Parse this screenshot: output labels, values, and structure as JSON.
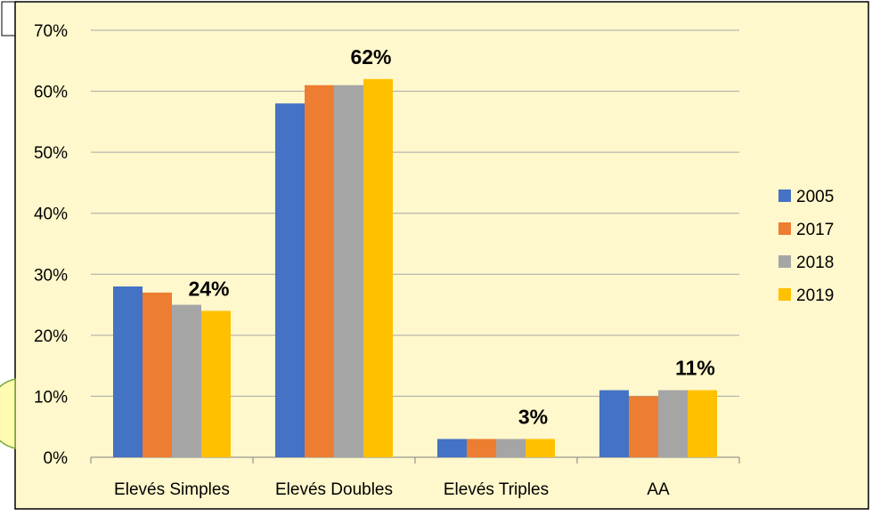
{
  "chart_data": {
    "type": "bar",
    "categories": [
      "Elevés Simples",
      "Elevés Doubles",
      "Elevés Triples",
      "AA"
    ],
    "series": [
      {
        "name": "2005",
        "values": [
          28,
          58,
          3,
          11
        ],
        "color": "#4472C4"
      },
      {
        "name": "2017",
        "values": [
          27,
          61,
          3,
          10
        ],
        "color": "#ED7D31"
      },
      {
        "name": "2018",
        "values": [
          25,
          61,
          3,
          11
        ],
        "color": "#A5A5A5"
      },
      {
        "name": "2019",
        "values": [
          24,
          62,
          3,
          11
        ],
        "color": "#FFC000"
      }
    ],
    "ylim": [
      0,
      70
    ],
    "ytick_step": 10,
    "ytick_labels": [
      "0%",
      "10%",
      "20%",
      "30%",
      "40%",
      "50%",
      "60%",
      "70%"
    ],
    "data_labels": [
      {
        "series": "2019",
        "category": "Elevés Simples",
        "text": "24%"
      },
      {
        "series": "2019",
        "category": "Elevés Doubles",
        "text": "62%"
      },
      {
        "series": "2019",
        "category": "Elevés Triples",
        "text": "3%"
      },
      {
        "series": "2019",
        "category": "AA",
        "text": "11%"
      }
    ],
    "grid": true,
    "legend_position": "right",
    "background_color": "#FFF8CC"
  }
}
